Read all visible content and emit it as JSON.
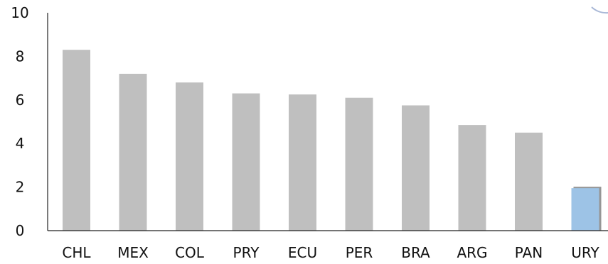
{
  "chart_data": {
    "type": "bar",
    "categories": [
      "CHL",
      "MEX",
      "COL",
      "PRY",
      "ECU",
      "PER",
      "BRA",
      "ARG",
      "PAN",
      "URY"
    ],
    "values": [
      8.3,
      7.2,
      6.8,
      6.3,
      6.25,
      6.1,
      5.75,
      4.85,
      4.5,
      1.95
    ],
    "highlighted_category": "URY",
    "title": "",
    "xlabel": "",
    "ylabel": "",
    "ylim": [
      0,
      10
    ],
    "yticks": [
      "0",
      "2",
      "4",
      "6",
      "8",
      "10"
    ],
    "grid": false,
    "legend": "none",
    "colors": {
      "default_bar": "#bfbfbf",
      "highlight_bar": "#9dc3e6",
      "highlight_shadow": "#404040",
      "axis": "#222222"
    }
  }
}
